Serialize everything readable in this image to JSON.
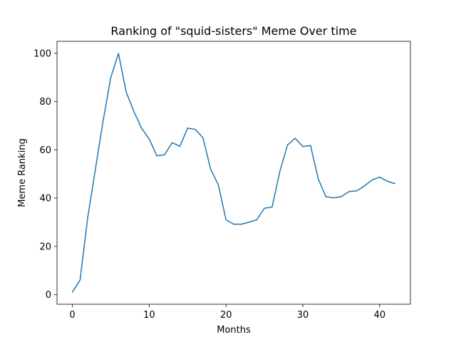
{
  "chart_data": {
    "type": "line",
    "title": "Ranking of \"squid-sisters\" Meme Over time",
    "xlabel": "Months",
    "ylabel": "Meme Ranking",
    "xlim": [
      -2,
      44
    ],
    "ylim": [
      -4,
      105
    ],
    "xticks": [
      0,
      10,
      20,
      30,
      40
    ],
    "yticks": [
      0,
      20,
      40,
      60,
      80,
      100
    ],
    "grid": false,
    "line_color": "#1f77b4",
    "x": [
      0,
      1,
      2,
      3,
      4,
      5,
      6,
      7,
      8,
      9,
      10,
      11,
      12,
      13,
      14,
      15,
      16,
      17,
      18,
      19,
      20,
      21,
      22,
      23,
      24,
      25,
      26,
      27,
      28,
      29,
      30,
      31,
      32,
      33,
      34,
      35,
      36,
      37,
      38,
      39,
      40,
      41,
      42
    ],
    "series": [
      {
        "values": [
          1,
          6,
          32,
          52,
          72,
          90,
          100,
          84,
          76,
          69,
          64.5,
          57.5,
          58,
          63,
          61.5,
          69,
          68.5,
          65,
          52,
          45.5,
          31,
          29.2,
          29.2,
          30,
          31,
          35.8,
          36.3,
          51,
          62,
          64.8,
          61.4,
          61.8,
          48,
          40.6,
          40.1,
          40.6,
          42.7,
          43,
          45,
          47.5,
          48.7,
          47,
          46
        ]
      }
    ]
  }
}
